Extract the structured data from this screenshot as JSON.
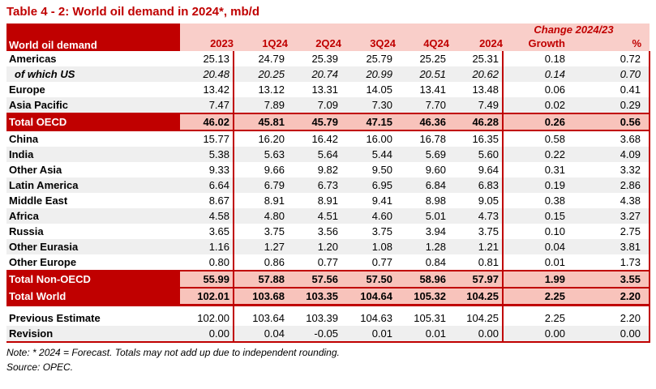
{
  "title": "Table 4 - 2: World oil demand in 2024*, mb/d",
  "colors": {
    "accent_dark_red": "#C00000",
    "header_pink": "#F9CEC9",
    "total_row_pink": "#F8C3BB",
    "alt_row_gray": "#EFEFEF",
    "text_black": "#000000",
    "header_text_white": "#FFFFFF"
  },
  "table": {
    "corner_label": "World oil demand",
    "change_header": "Change 2024/23",
    "columns": [
      "2023",
      "1Q24",
      "2Q24",
      "3Q24",
      "4Q24",
      "2024",
      "Growth",
      "%"
    ],
    "main_rows": [
      {
        "label": "Americas",
        "cls": "plain",
        "shade": false,
        "borders": "",
        "values": [
          "25.13",
          "24.79",
          "25.39",
          "25.79",
          "25.25",
          "25.31",
          "0.18",
          "0.72"
        ]
      },
      {
        "label": "of which US",
        "cls": "sub",
        "shade": true,
        "borders": "",
        "values": [
          "20.48",
          "20.25",
          "20.74",
          "20.99",
          "20.51",
          "20.62",
          "0.14",
          "0.70"
        ]
      },
      {
        "label": "Europe",
        "cls": "plain",
        "shade": false,
        "borders": "",
        "values": [
          "13.42",
          "13.12",
          "13.31",
          "14.05",
          "13.41",
          "13.48",
          "0.06",
          "0.41"
        ]
      },
      {
        "label": "Asia Pacific",
        "cls": "plain",
        "shade": true,
        "borders": "",
        "values": [
          "7.47",
          "7.89",
          "7.09",
          "7.30",
          "7.70",
          "7.49",
          "0.02",
          "0.29"
        ]
      },
      {
        "label": "Total OECD",
        "cls": "total",
        "shade": false,
        "borders": "bt bb",
        "values": [
          "46.02",
          "45.81",
          "45.79",
          "47.15",
          "46.36",
          "46.28",
          "0.26",
          "0.56"
        ]
      },
      {
        "label": "China",
        "cls": "plain",
        "shade": false,
        "borders": "",
        "values": [
          "15.77",
          "16.20",
          "16.42",
          "16.00",
          "16.78",
          "16.35",
          "0.58",
          "3.68"
        ]
      },
      {
        "label": "India",
        "cls": "plain",
        "shade": true,
        "borders": "",
        "values": [
          "5.38",
          "5.63",
          "5.64",
          "5.44",
          "5.69",
          "5.60",
          "0.22",
          "4.09"
        ]
      },
      {
        "label": "Other Asia",
        "cls": "plain",
        "shade": false,
        "borders": "",
        "values": [
          "9.33",
          "9.66",
          "9.82",
          "9.50",
          "9.60",
          "9.64",
          "0.31",
          "3.32"
        ]
      },
      {
        "label": "Latin America",
        "cls": "plain",
        "shade": true,
        "borders": "",
        "values": [
          "6.64",
          "6.79",
          "6.73",
          "6.95",
          "6.84",
          "6.83",
          "0.19",
          "2.86"
        ]
      },
      {
        "label": "Middle East",
        "cls": "plain",
        "shade": false,
        "borders": "",
        "values": [
          "8.67",
          "8.91",
          "8.91",
          "9.41",
          "8.98",
          "9.05",
          "0.38",
          "4.38"
        ]
      },
      {
        "label": "Africa",
        "cls": "plain",
        "shade": true,
        "borders": "",
        "values": [
          "4.58",
          "4.80",
          "4.51",
          "4.60",
          "5.01",
          "4.73",
          "0.15",
          "3.27"
        ]
      },
      {
        "label": "Russia",
        "cls": "plain",
        "shade": false,
        "borders": "",
        "values": [
          "3.65",
          "3.75",
          "3.56",
          "3.75",
          "3.94",
          "3.75",
          "0.10",
          "2.75"
        ]
      },
      {
        "label": "Other Eurasia",
        "cls": "plain",
        "shade": true,
        "borders": "",
        "values": [
          "1.16",
          "1.27",
          "1.20",
          "1.08",
          "1.28",
          "1.21",
          "0.04",
          "3.81"
        ]
      },
      {
        "label": "Other Europe",
        "cls": "plain",
        "shade": false,
        "borders": "",
        "values": [
          "0.80",
          "0.86",
          "0.77",
          "0.77",
          "0.84",
          "0.81",
          "0.01",
          "1.73"
        ]
      },
      {
        "label": "Total Non-OECD",
        "cls": "total",
        "shade": false,
        "borders": "bt",
        "values": [
          "55.99",
          "57.88",
          "57.56",
          "57.50",
          "58.96",
          "57.97",
          "1.99",
          "3.55"
        ]
      },
      {
        "label": "Total World",
        "cls": "total",
        "shade": false,
        "borders": "bt bb3",
        "values": [
          "102.01",
          "103.68",
          "103.35",
          "104.64",
          "105.32",
          "104.25",
          "2.25",
          "2.20"
        ]
      }
    ],
    "bottom_rows": [
      {
        "label": "Previous Estimate",
        "cls": "plain",
        "shade": false,
        "borders": "",
        "values": [
          "102.00",
          "103.64",
          "103.39",
          "104.63",
          "105.31",
          "104.25",
          "2.25",
          "2.20"
        ]
      },
      {
        "label": "Revision",
        "cls": "plain",
        "shade": true,
        "borders": "bbend",
        "values": [
          "0.00",
          "0.04",
          "-0.05",
          "0.01",
          "0.01",
          "0.00",
          "0.00",
          "0.00"
        ]
      }
    ]
  },
  "note": "Note: * 2024 = Forecast. Totals may not add up due to independent rounding.",
  "source": "Source: OPEC."
}
